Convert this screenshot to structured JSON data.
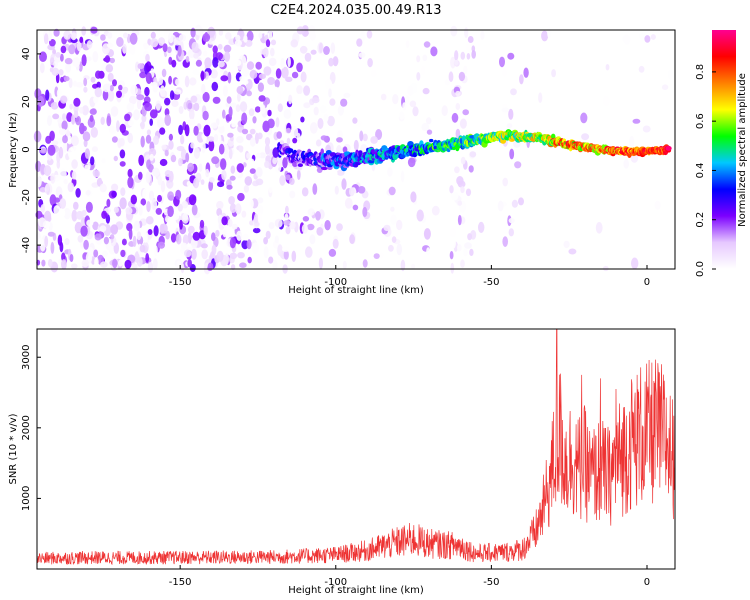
{
  "title": "C2E4.2024.035.00.49.R13",
  "chart_data": [
    {
      "type": "heatmap",
      "xlabel": "Height of straight line (km)",
      "ylabel": "Frequency (Hz)",
      "xlim": [
        -196,
        9
      ],
      "ylim": [
        -50,
        50
      ],
      "xticks": [
        -150,
        -100,
        -50,
        0
      ],
      "yticks": [
        -40,
        -20,
        0,
        20,
        40
      ],
      "colorbar": {
        "label": "Normalized spectral amplitude",
        "range": [
          0,
          0.97
        ],
        "ticks": [
          0,
          0.2,
          0.4,
          0.6,
          0.8
        ],
        "colormap": [
          "#ffffff",
          "#e6c8ff",
          "#7b00ff",
          "#0000ff",
          "#00c8ff",
          "#00ff00",
          "#ffff00",
          "#ff8000",
          "#ff0000",
          "#ff0090"
        ]
      },
      "signal_track": [
        {
          "x": -115,
          "y": -3
        },
        {
          "x": -100,
          "y": -5
        },
        {
          "x": -85,
          "y": -2
        },
        {
          "x": -70,
          "y": 1
        },
        {
          "x": -55,
          "y": 4
        },
        {
          "x": -45,
          "y": 6
        },
        {
          "x": -35,
          "y": 5
        },
        {
          "x": -25,
          "y": 2
        },
        {
          "x": -15,
          "y": 0
        },
        {
          "x": -5,
          "y": -1
        },
        {
          "x": 7,
          "y": 0
        }
      ]
    },
    {
      "type": "line",
      "xlabel": "Height of straight line (km)",
      "ylabel": "SNR (10 * v/v)",
      "xlim": [
        -196,
        9
      ],
      "ylim": [
        0,
        3400
      ],
      "xticks": [
        -150,
        -100,
        -50,
        0
      ],
      "yticks": [
        1000,
        2000,
        3000
      ],
      "color": "#ee3333",
      "series": [
        {
          "x": [
            -196,
            -180,
            -160,
            -140,
            -120,
            -100,
            -90,
            -80,
            -75,
            -70,
            -65,
            -60,
            -55,
            -50,
            -45,
            -40,
            -36,
            -33,
            -30,
            -28,
            -26,
            -24,
            -22,
            -20,
            -18,
            -15,
            -12,
            -10,
            -8,
            -5,
            -2,
            0,
            3,
            6,
            9
          ],
          "y": [
            150,
            160,
            160,
            165,
            170,
            200,
            260,
            380,
            420,
            360,
            340,
            330,
            220,
            230,
            240,
            280,
            500,
            900,
            1500,
            1900,
            1500,
            1600,
            1400,
            1500,
            1300,
            1400,
            1300,
            1500,
            1600,
            1800,
            1900,
            1900,
            1950,
            1850,
            1500
          ]
        }
      ],
      "peaks": [
        {
          "x": -29,
          "y": 3400
        },
        {
          "x": -21,
          "y": 2750
        },
        {
          "x": -15,
          "y": 2700
        },
        {
          "x": -10,
          "y": 2550
        },
        {
          "x": 3,
          "y": 2500
        }
      ]
    }
  ]
}
